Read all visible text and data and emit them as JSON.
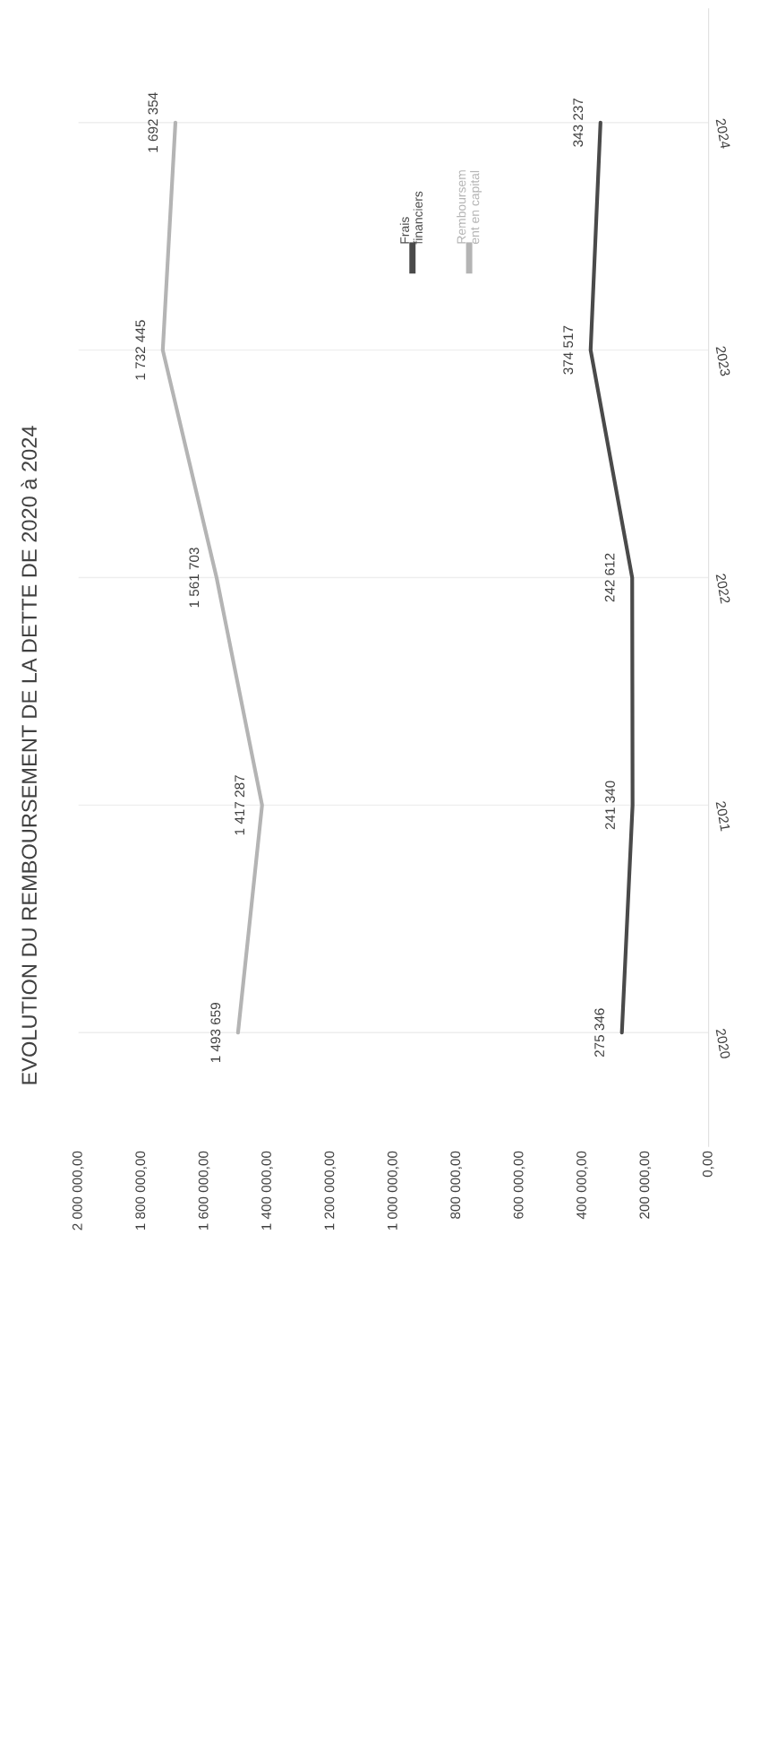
{
  "chart_data": {
    "type": "line",
    "title": "EVOLUTION DU REMBOURSEMENT DE LA DETTE DE 2020 à 2024",
    "orientation": "horizontal",
    "categories": [
      "2024",
      "2023",
      "2022",
      "2021",
      "2020"
    ],
    "series": [
      {
        "name": "Frais\nfinanciers",
        "color": "#4a4a4a",
        "values": [
          343237,
          374517,
          242612,
          241340,
          275346
        ]
      },
      {
        "name": "Remboursem\nent en capital",
        "color": "#b4b4b4",
        "values": [
          1692354,
          1732445,
          1561703,
          1417287,
          1493659
        ]
      }
    ],
    "xlim": [
      2000000,
      0
    ],
    "xticks": [
      {
        "value": 0,
        "label": "0,00"
      },
      {
        "value": 200000,
        "label": "200 000,00"
      },
      {
        "value": 400000,
        "label": "400 000,00"
      },
      {
        "value": 600000,
        "label": "600 000,00"
      },
      {
        "value": 800000,
        "label": "800 000,00"
      },
      {
        "value": 1000000,
        "label": "1 000 000,00"
      },
      {
        "value": 1200000,
        "label": "1 200 000,00"
      },
      {
        "value": 1400000,
        "label": "1 400 000,00"
      },
      {
        "value": 1600000,
        "label": "1 600 000,00"
      },
      {
        "value": 1800000,
        "label": "1 800 000,00"
      },
      {
        "value": 2000000,
        "label": "2 000 000,00"
      }
    ],
    "grid": "y",
    "legend": "top right",
    "data_labels": true
  }
}
